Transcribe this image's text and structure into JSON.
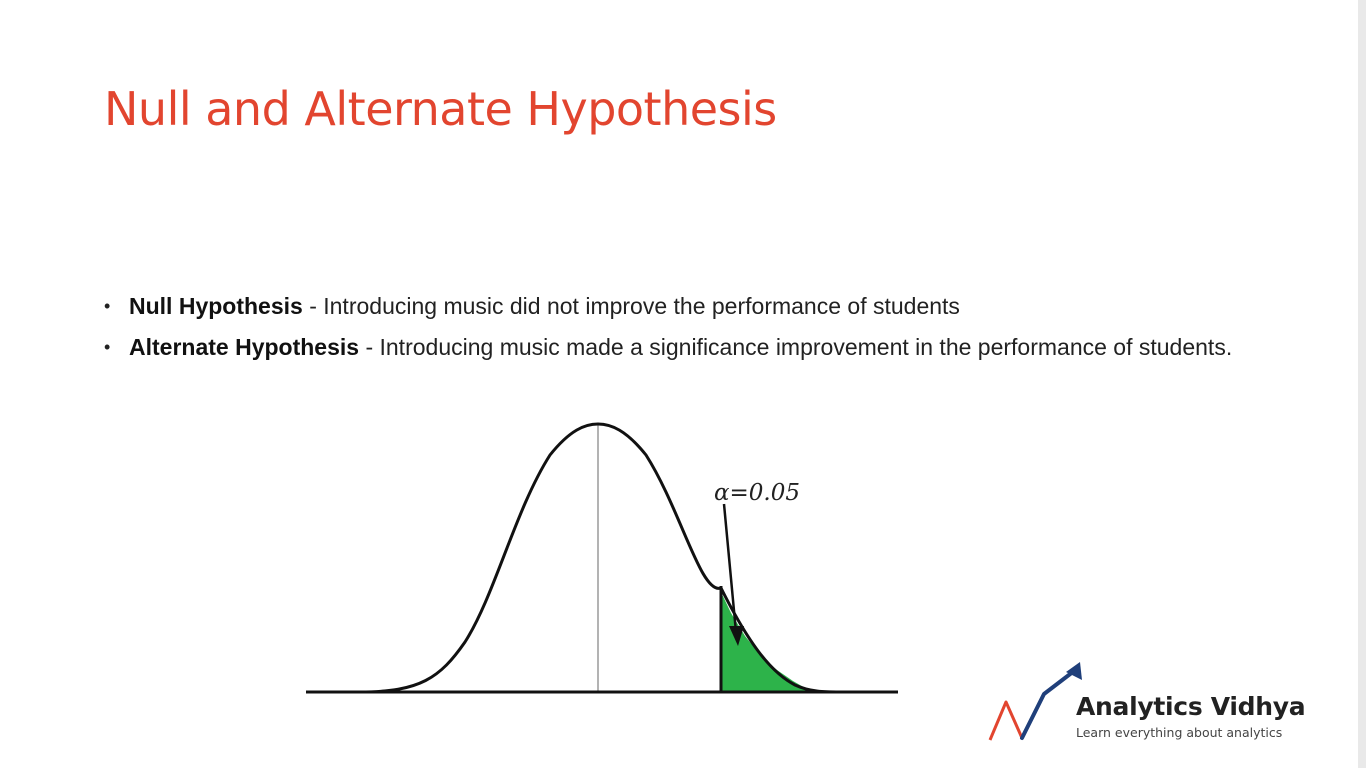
{
  "slide": {
    "title": "Null and Alternate Hypothesis",
    "bullets": [
      {
        "marker": "•",
        "term": "Null Hypothesis",
        "text": " - Introducing music did not improve the performance of students"
      },
      {
        "marker": "•",
        "term": "Alternate Hypothesis",
        "text": " - Introducing music made a significance improvement in the performance of students."
      }
    ]
  },
  "diagram": {
    "type": "normal-distribution",
    "annotation": "α=0.05",
    "shaded_region": "right-tail",
    "shaded_color": "#2db34a",
    "curve_color": "#111111"
  },
  "logo": {
    "name": "Analytics Vidhya",
    "tagline": "Learn everything about analytics",
    "colors": {
      "arrow_blue": "#1f3f7a",
      "arrow_orange": "#e2452f"
    }
  },
  "colors": {
    "title": "#e2452f",
    "text": "#222222",
    "background": "#ffffff"
  }
}
